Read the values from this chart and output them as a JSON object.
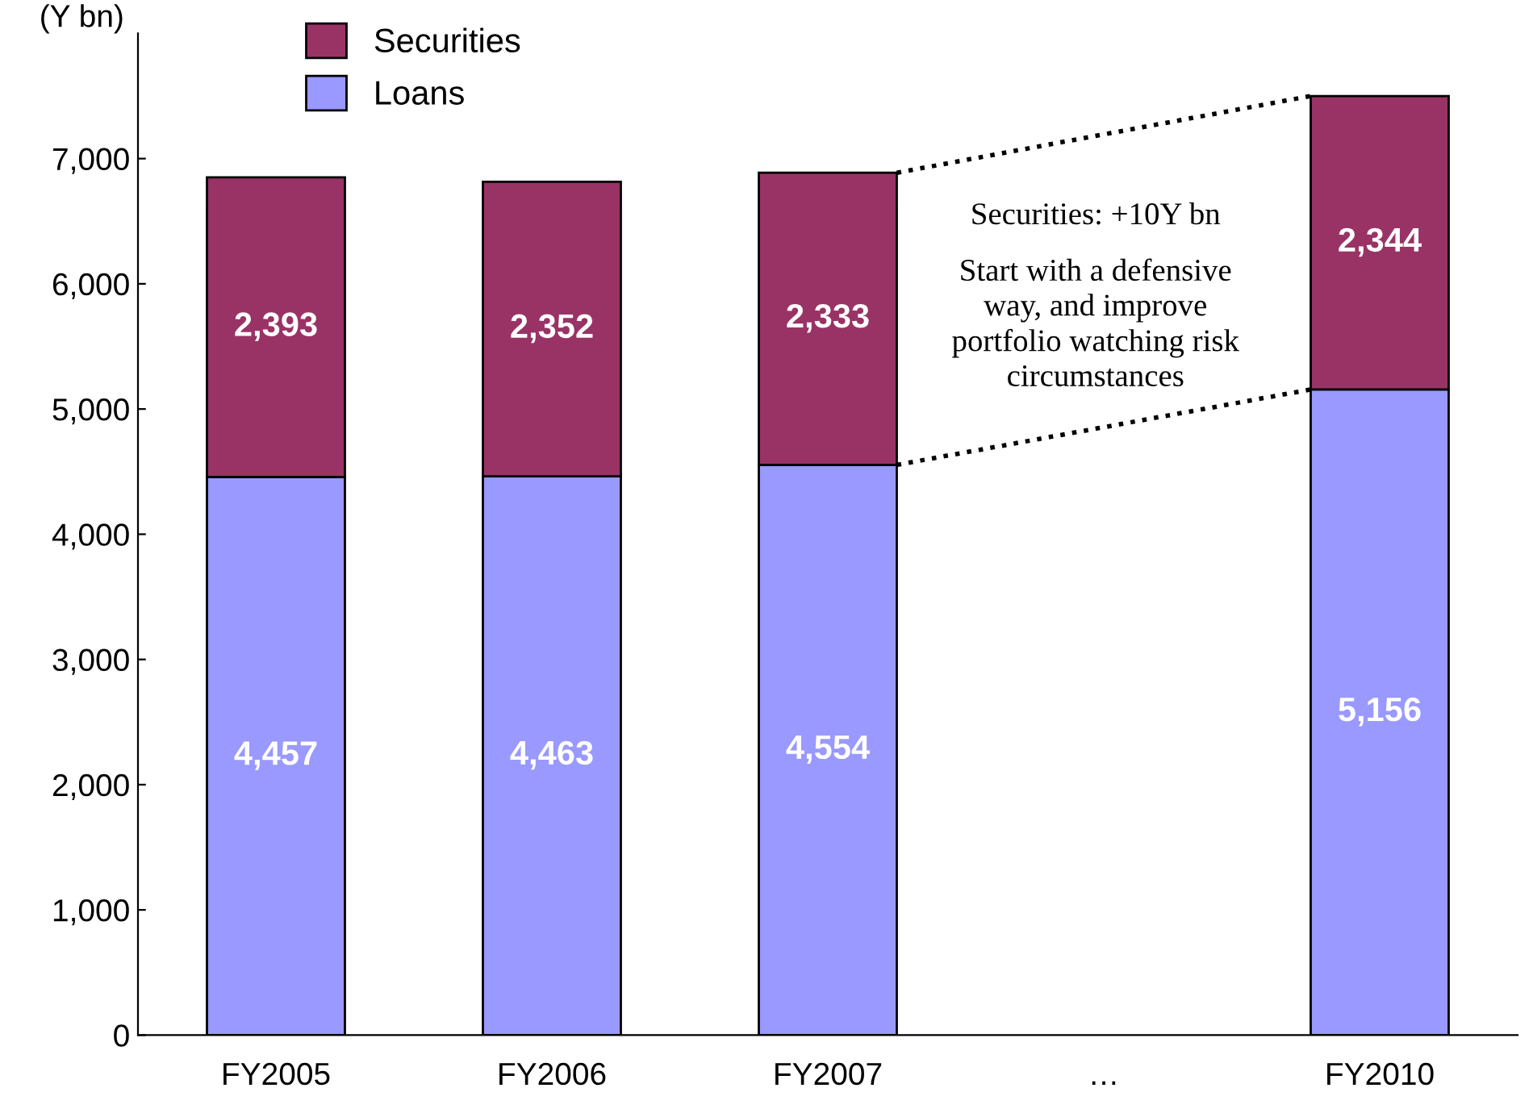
{
  "chart_data": {
    "type": "bar",
    "stacked": true,
    "ylabel": "(Y bn)",
    "categories": [
      "FY2005",
      "FY2006",
      "FY2007",
      "…",
      "FY2010"
    ],
    "series": [
      {
        "name": "Loans",
        "color": "#9999ff",
        "values": [
          4457,
          4463,
          4554,
          null,
          5156
        ],
        "value_labels": [
          "4,457",
          "4,463",
          "4,554",
          null,
          "5,156"
        ]
      },
      {
        "name": "Securities",
        "color": "#993366",
        "values": [
          2393,
          2352,
          2333,
          null,
          2344
        ],
        "value_labels": [
          "2,393",
          "2,352",
          "2,333",
          null,
          "2,344"
        ]
      }
    ],
    "ylim": [
      0,
      8000
    ],
    "yticks": [
      0,
      {
        "value": 1000,
        "label": "1,000"
      },
      {
        "value": 2000,
        "label": "2,000"
      },
      {
        "value": 3000,
        "label": "3,000"
      },
      {
        "value": 4000,
        "label": "4,000"
      },
      {
        "value": 5000,
        "label": "5,000"
      },
      {
        "value": 6000,
        "label": "6,000"
      },
      {
        "value": 7000,
        "label": "7,000"
      }
    ],
    "grid": false,
    "legend": "top left",
    "annotations": [
      "Securities: +10Y bn",
      "Start with a defensive way, and improve portfolio watching risk circumstances"
    ]
  }
}
